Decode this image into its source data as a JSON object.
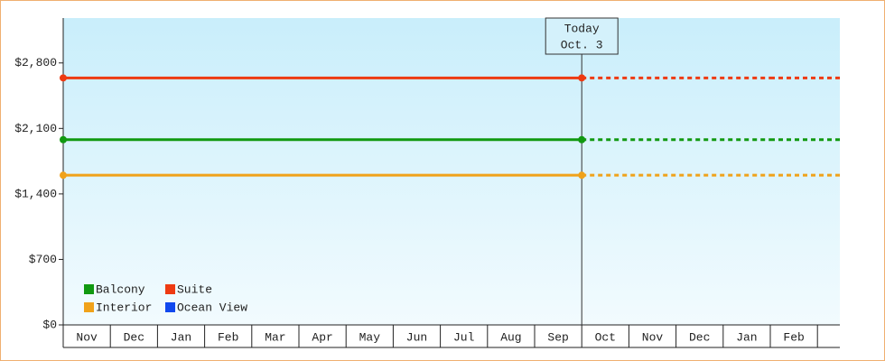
{
  "chart_data": {
    "type": "line",
    "categories": [
      "Nov",
      "Dec",
      "Jan",
      "Feb",
      "Mar",
      "Apr",
      "May",
      "Jun",
      "Jul",
      "Aug",
      "Sep",
      "Oct",
      "Nov",
      "Dec",
      "Jan",
      "Feb"
    ],
    "series": [
      {
        "name": "Balcony",
        "color": "#119911",
        "values": [
          1980,
          1980,
          1980,
          1980,
          1980,
          1980,
          1980,
          1980,
          1980,
          1980,
          1980,
          1980,
          1980,
          1980,
          1980,
          1980
        ]
      },
      {
        "name": "Suite",
        "color": "#ee3a12",
        "values": [
          2640,
          2640,
          2640,
          2640,
          2640,
          2640,
          2640,
          2640,
          2640,
          2640,
          2640,
          2640,
          2640,
          2640,
          2640,
          2640
        ]
      },
      {
        "name": "Interior",
        "color": "#f0a21a",
        "values": [
          1600,
          1600,
          1600,
          1600,
          1600,
          1600,
          1600,
          1600,
          1600,
          1600,
          1600,
          1600,
          1600,
          1600,
          1600,
          1600
        ]
      },
      {
        "name": "Ocean View",
        "color": "#1048ee",
        "values": [
          null,
          null,
          null,
          null,
          null,
          null,
          null,
          null,
          null,
          null,
          null,
          null,
          null,
          null,
          null,
          null
        ]
      }
    ],
    "annotation": {
      "text": [
        "Today",
        "Oct. 3"
      ],
      "x": "Oct"
    },
    "ylim": [
      0,
      3280
    ],
    "yticks": [
      {
        "value": 0,
        "label": "$0"
      },
      {
        "value": 700,
        "label": "$700"
      },
      {
        "value": 1400,
        "label": "$1,400"
      },
      {
        "value": 2100,
        "label": "$2,100"
      },
      {
        "value": 2800,
        "label": "$2,800"
      }
    ]
  }
}
